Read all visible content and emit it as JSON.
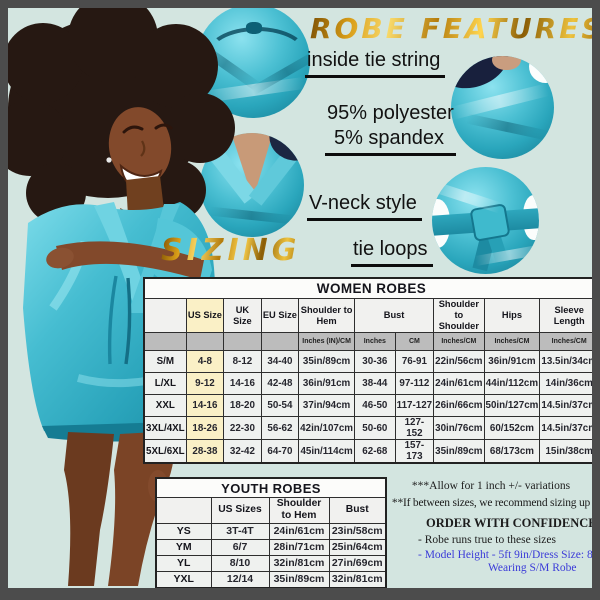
{
  "page": {
    "background_color": "#d3e5e0",
    "frame_color": "#4c4c4c",
    "accent_teal": "#3db6cb",
    "gold_color": "#d9a520",
    "note_blue": "#3b3bd8"
  },
  "features": {
    "title": "ROBE FEATURES",
    "inside_tie_label": "inside tie string",
    "composition_line1": "95% polyester",
    "composition_line2": "5% spandex",
    "vneck_label": "V-neck style",
    "tie_loops_label": "tie loops"
  },
  "sizing": {
    "title": "SIZING"
  },
  "women_table": {
    "title": "WOMEN ROBES",
    "headers": [
      {
        "label": "",
        "span": 1
      },
      {
        "label": "US Size",
        "span": 1,
        "highlight": true
      },
      {
        "label": "UK Size",
        "span": 1
      },
      {
        "label": "EU Size",
        "span": 1
      },
      {
        "label": "Shoulder to Hem",
        "span": 1
      },
      {
        "label": "Bust",
        "span": 2
      },
      {
        "label": "Shoulder to Shoulder",
        "span": 1
      },
      {
        "label": "Hips",
        "span": 1
      },
      {
        "label": "Sleeve Length",
        "span": 1
      }
    ],
    "units": [
      "",
      "",
      "",
      "",
      "Inches (IN)/CM",
      "Inches",
      "CM",
      "Inches/CM",
      "Inches/CM",
      "Inches/CM"
    ],
    "highlight_col": 1,
    "rows": [
      [
        "S/M",
        "4-8",
        "8-12",
        "34-40",
        "35in/89cm",
        "30-36",
        "76-91",
        "22in/56cm",
        "36in/91cm",
        "13.5in/34cm"
      ],
      [
        "L/XL",
        "9-12",
        "14-16",
        "42-48",
        "36in/91cm",
        "38-44",
        "97-112",
        "24in/61cm",
        "44in/112cm",
        "14in/36cm"
      ],
      [
        "XXL",
        "14-16",
        "18-20",
        "50-54",
        "37in/94cm",
        "46-50",
        "117-127",
        "26in/66cm",
        "50in/127cm",
        "14.5in/37cm"
      ],
      [
        "3XL/4XL",
        "18-26",
        "22-30",
        "56-62",
        "42in/107cm",
        "50-60",
        "127-152",
        "30in/76cm",
        "60/152cm",
        "14.5in/37cm"
      ],
      [
        "5XL/6XL",
        "28-38",
        "32-42",
        "64-70",
        "45in/114cm",
        "62-68",
        "157-173",
        "35in/89cm",
        "68/173cm",
        "15in/38cm"
      ]
    ]
  },
  "youth_table": {
    "title": "YOUTH ROBES",
    "headers": [
      {
        "label": "",
        "span": 1
      },
      {
        "label": "US Sizes",
        "span": 1
      },
      {
        "label": "Shoulder to Hem",
        "span": 1
      },
      {
        "label": "Bust",
        "span": 1
      }
    ],
    "rows": [
      [
        "YS",
        "3T-4T",
        "24in/61cm",
        "23in/58cm"
      ],
      [
        "YM",
        "6/7",
        "28in/71cm",
        "25in/64cm"
      ],
      [
        "YL",
        "8/10",
        "32in/81cm",
        "27in/69cm"
      ],
      [
        "YXL",
        "12/14",
        "35in/89cm",
        "32in/81cm"
      ]
    ]
  },
  "notes": {
    "variation_note": "***Allow for 1 inch +/- variations",
    "between_sizes_note": "**If between sizes, we recommend sizing up",
    "confidence_title": "ORDER WITH CONFIDENCE",
    "confidence_line1": "- Robe runs true to these sizes",
    "confidence_line2": "- Model Height - 5ft 9in/Dress Size: 8 US",
    "confidence_line3": "Wearing S/M Robe"
  }
}
